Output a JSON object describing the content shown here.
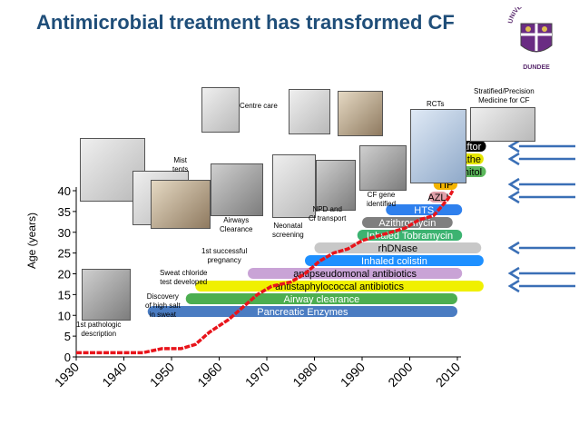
{
  "title": "Antimicrobial treatment has transformed CF",
  "logo": {
    "line1": "UNIVERSITY OF",
    "line2": "DUNDEE"
  },
  "captions": {
    "first_pathologic": "1st pathologic\ndescription",
    "discovery": "Discovery\nof high salt\nin sweat",
    "sweat_test": "Sweat chloride\ntest developed",
    "mist_tents": "Mist\ntents",
    "first_pregnancy": "1st successful\npregnancy",
    "airways_clearance": "Airways\nClearance",
    "neonatal": "Neonatal\nscreening",
    "centre_care": "Centre care",
    "npd": "NPD and\nCl transport",
    "cf_gene": "CF gene\nidentified",
    "rcts": "RCTs",
    "stratified": "Stratified/Precision\nMedicine  for CF"
  },
  "colors": {
    "title": "#1f4e79",
    "curve": "#e8141b",
    "arrow": "#3a6fb6"
  },
  "chart_data": {
    "type": "line",
    "xlabel": "",
    "ylabel": "Age (years)",
    "xlim": [
      1930,
      2010
    ],
    "ylim": [
      0,
      40
    ],
    "x_ticks": [
      "1930",
      "1940",
      "1950",
      "1960",
      "1970",
      "1980",
      "1990",
      "2000",
      "2010"
    ],
    "y_ticks": [
      "0",
      "5",
      "10",
      "15",
      "20",
      "25",
      "30",
      "35",
      "40"
    ],
    "series": [
      {
        "x": [
          1930,
          1938,
          1944,
          1948,
          1952,
          1955,
          1958,
          1962,
          1965,
          1968,
          1971,
          1975,
          1978,
          1981,
          1984,
          1987,
          1990,
          1993,
          1996,
          1999,
          2002,
          2005,
          2008,
          2009
        ],
        "y": [
          1,
          1,
          1,
          2,
          2,
          3,
          6,
          9,
          12,
          15,
          17,
          18,
          20,
          23,
          25,
          26,
          28,
          29,
          30,
          31,
          33,
          34,
          38,
          40
        ]
      }
    ],
    "treatments": [
      {
        "label": "Ivacaftor",
        "color": "#000000",
        "text_color": "#ffffff",
        "start": 2006,
        "end": 2016,
        "arrow": true
      },
      {
        "label": "Colobreathe",
        "color": "#e6e600",
        "text_color": "#000000",
        "start": 2003,
        "end": 2015.5,
        "arrow": true
      },
      {
        "label": "Bronchitol",
        "color": "#5cb85c",
        "text_color": "#000000",
        "start": 2005,
        "end": 2016,
        "arrow": false
      },
      {
        "label": "TIP",
        "color": "#f4b400",
        "text_color": "#000000",
        "start": 2005,
        "end": 2010,
        "arrow": true
      },
      {
        "label": "AZLI",
        "color": "#e0a0aa",
        "text_color": "#000000",
        "start": 2004,
        "end": 2008,
        "arrow": true
      },
      {
        "label": "HTS",
        "color": "#2f80ed",
        "text_color": "#ffffff",
        "start": 1995,
        "end": 2011,
        "arrow": false
      },
      {
        "label": "Azithromycin",
        "color": "#7f7f7f",
        "text_color": "#ffffff",
        "start": 1990,
        "end": 2009,
        "arrow": false
      },
      {
        "label": "Inhaled Tobramycin",
        "color": "#3cb371",
        "text_color": "#ffffff",
        "start": 1989,
        "end": 2011,
        "arrow": false
      },
      {
        "label": "rhDNase",
        "color": "#c8c8c8",
        "text_color": "#000000",
        "start": 1980,
        "end": 2015,
        "arrow": true
      },
      {
        "label": "Inhaled colistin",
        "color": "#1e90ff",
        "text_color": "#ffffff",
        "start": 1978,
        "end": 2015.5,
        "arrow": false
      },
      {
        "label": "antipseudomonal antibiotics",
        "color": "#c9a3d6",
        "text_color": "#000000",
        "start": 1966,
        "end": 2011,
        "arrow": true
      },
      {
        "label": "antistaphylococcal antibiotics",
        "color": "#f0f000",
        "text_color": "#000000",
        "start": 1955,
        "end": 2015.5,
        "arrow": true
      },
      {
        "label": "Airway clearance",
        "color": "#4cae50",
        "text_color": "#ffffff",
        "start": 1953,
        "end": 2010,
        "arrow": false
      },
      {
        "label": "Pancreatic Enzymes",
        "color": "#4a7cc2",
        "text_color": "#ffffff",
        "start": 1945,
        "end": 2010,
        "arrow": false
      }
    ]
  }
}
